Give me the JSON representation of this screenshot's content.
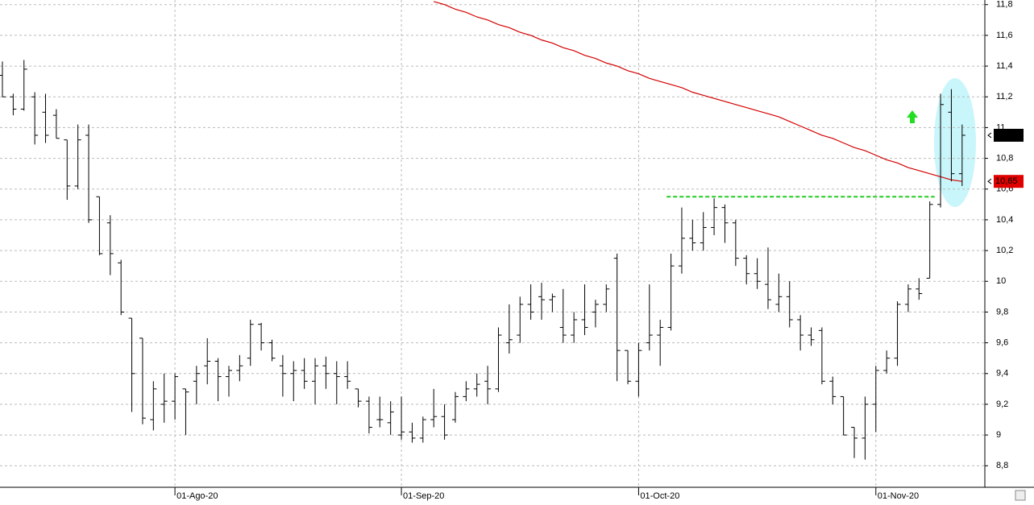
{
  "chart_data": {
    "type": "ohlc",
    "categories": [
      null,
      null,
      null,
      null,
      null,
      null,
      null,
      null,
      null,
      null,
      null,
      null,
      null,
      null,
      null,
      null,
      "01-Ago-20",
      null,
      null,
      null,
      null,
      null,
      null,
      null,
      null,
      null,
      null,
      null,
      null,
      null,
      null,
      null,
      null,
      null,
      null,
      null,
      null,
      "01-Sep-20",
      null,
      null,
      null,
      null,
      null,
      null,
      null,
      null,
      null,
      null,
      null,
      null,
      null,
      null,
      null,
      null,
      null,
      null,
      null,
      null,
      null,
      "01-Oct-20",
      null,
      null,
      null,
      null,
      null,
      null,
      null,
      null,
      null,
      null,
      null,
      null,
      null,
      null,
      null,
      null,
      null,
      null,
      null,
      null,
      null,
      "01-Nov-20",
      null,
      null,
      null,
      null,
      null,
      null,
      null,
      null
    ],
    "ohlc": {
      "color": "#000000",
      "open": [
        11.34,
        11.2,
        11.12,
        11.2,
        11.1,
        11.08,
        10.92,
        10.62,
        10.95,
        10.55,
        10.38,
        10.12,
        9.76,
        9.63,
        9.1,
        9.2,
        9.22,
        9.3,
        9.35,
        9.45,
        9.48,
        9.38,
        9.42,
        9.5,
        9.72,
        9.6,
        9.45,
        9.4,
        9.42,
        9.35,
        9.45,
        9.4,
        9.38,
        9.3,
        9.22,
        9.1,
        9.08,
        9.0,
        9.02,
        8.98,
        9.1,
        9.12,
        9.1,
        9.25,
        9.3,
        9.35,
        9.3,
        9.6,
        9.65,
        9.85,
        9.9,
        9.88,
        9.7,
        9.65,
        9.75,
        9.8,
        9.85,
        10.15,
        9.55,
        9.35,
        9.6,
        9.65,
        9.7,
        10.1,
        10.28,
        10.25,
        10.35,
        10.48,
        10.38,
        10.15,
        10.05,
        9.98,
        9.85,
        9.9,
        9.75,
        9.65,
        9.68,
        9.35,
        9.25,
        9.05,
        8.98,
        9.2,
        9.42,
        9.5,
        9.85,
        9.95,
        10.02,
        10.5,
        11.1,
        10.7
      ],
      "high": [
        11.43,
        11.22,
        11.44,
        11.23,
        11.22,
        11.12,
        10.92,
        11.02,
        11.02,
        10.55,
        10.43,
        10.14,
        9.76,
        9.63,
        9.35,
        9.4,
        9.4,
        9.3,
        9.45,
        9.63,
        9.5,
        9.45,
        9.52,
        9.75,
        9.73,
        9.62,
        9.52,
        9.48,
        9.5,
        9.5,
        9.51,
        9.48,
        9.48,
        9.3,
        9.25,
        9.25,
        9.22,
        9.25,
        9.08,
        9.12,
        9.3,
        9.2,
        9.28,
        9.35,
        9.4,
        9.45,
        9.7,
        9.85,
        9.9,
        9.98,
        9.99,
        9.92,
        9.95,
        9.8,
        9.98,
        9.88,
        9.98,
        10.18,
        9.55,
        9.6,
        9.98,
        9.75,
        10.18,
        10.48,
        10.4,
        10.45,
        10.54,
        10.5,
        10.4,
        10.17,
        10.15,
        10.22,
        10.05,
        10.0,
        9.78,
        9.7,
        9.7,
        9.38,
        9.25,
        9.05,
        9.25,
        9.45,
        9.55,
        9.87,
        9.98,
        10.02,
        10.52,
        11.22,
        11.25,
        11.02
      ],
      "low": [
        11.2,
        11.08,
        11.11,
        10.89,
        10.9,
        10.93,
        10.53,
        10.6,
        10.38,
        10.17,
        10.04,
        9.78,
        9.15,
        9.07,
        9.03,
        9.08,
        9.1,
        9.0,
        9.2,
        9.33,
        9.22,
        9.25,
        9.35,
        9.45,
        9.55,
        9.48,
        9.25,
        9.22,
        9.3,
        9.2,
        9.3,
        9.2,
        9.3,
        9.18,
        9.01,
        9.05,
        9.0,
        8.97,
        8.95,
        8.95,
        9.05,
        8.97,
        9.08,
        9.22,
        9.25,
        9.2,
        9.28,
        9.53,
        9.6,
        9.75,
        9.75,
        9.8,
        9.6,
        9.6,
        9.65,
        9.7,
        9.8,
        9.35,
        9.33,
        9.25,
        9.55,
        9.45,
        9.68,
        10.05,
        10.2,
        10.2,
        10.3,
        10.25,
        10.1,
        9.98,
        9.95,
        9.82,
        9.8,
        9.7,
        9.55,
        9.58,
        9.33,
        9.2,
        9.0,
        8.85,
        8.84,
        9.02,
        9.4,
        9.45,
        9.8,
        9.88,
        10.02,
        10.48,
        10.65,
        10.62
      ],
      "close": [
        11.2,
        11.12,
        11.38,
        10.95,
        10.95,
        10.93,
        10.62,
        10.92,
        10.4,
        10.18,
        10.18,
        9.8,
        9.4,
        9.11,
        9.3,
        9.22,
        9.38,
        9.28,
        9.4,
        9.48,
        9.38,
        9.42,
        9.45,
        9.72,
        9.6,
        9.5,
        9.4,
        9.42,
        9.35,
        9.45,
        9.4,
        9.38,
        9.35,
        9.22,
        9.05,
        9.1,
        9.15,
        9.02,
        8.98,
        9.1,
        9.12,
        9.0,
        9.25,
        9.3,
        9.33,
        9.3,
        9.65,
        9.62,
        9.85,
        9.8,
        9.88,
        9.9,
        9.65,
        9.75,
        9.7,
        9.85,
        9.95,
        9.55,
        9.35,
        9.55,
        9.65,
        9.7,
        10.1,
        10.28,
        10.25,
        10.35,
        10.48,
        10.38,
        10.15,
        10.05,
        10.0,
        9.88,
        9.9,
        9.75,
        9.65,
        9.62,
        9.35,
        9.25,
        9.0,
        8.98,
        9.2,
        9.42,
        9.5,
        9.85,
        9.95,
        9.92,
        10.5,
        11.15,
        10.7,
        10.95
      ]
    },
    "moving_average": {
      "color": "#d40000",
      "values": [
        null,
        null,
        null,
        null,
        null,
        null,
        null,
        null,
        null,
        null,
        null,
        null,
        null,
        null,
        null,
        null,
        null,
        null,
        null,
        null,
        null,
        null,
        null,
        null,
        null,
        null,
        null,
        null,
        null,
        null,
        null,
        null,
        null,
        null,
        null,
        null,
        null,
        null,
        null,
        null,
        11.82,
        11.8,
        11.77,
        11.75,
        11.72,
        11.7,
        11.67,
        11.65,
        11.62,
        11.6,
        11.57,
        11.55,
        11.52,
        11.5,
        11.47,
        11.45,
        11.42,
        11.4,
        11.37,
        11.35,
        11.32,
        11.3,
        11.28,
        11.26,
        11.23,
        11.21,
        11.19,
        11.17,
        11.15,
        11.13,
        11.11,
        11.09,
        11.07,
        11.04,
        11.01,
        10.98,
        10.95,
        10.93,
        10.9,
        10.87,
        10.85,
        10.82,
        10.79,
        10.77,
        10.74,
        10.72,
        10.7,
        10.68,
        10.66,
        10.65
      ]
    },
    "support_level": {
      "value": 10.55,
      "color": "#22cc22"
    },
    "price_tags": [
      {
        "value": 10.95,
        "color": "#000000"
      },
      {
        "value": 10.65,
        "label": "10,65",
        "color": "#e00000"
      }
    ],
    "ylim": [
      8.66,
      11.83
    ],
    "yticks": [
      {
        "value": 8.8,
        "label": "8,8"
      },
      9,
      {
        "value": 9.2,
        "label": "9,2"
      },
      {
        "value": 9.4,
        "label": "9,4"
      },
      {
        "value": 9.6,
        "label": "9,6"
      },
      {
        "value": 9.8,
        "label": "9,8"
      },
      10,
      {
        "value": 10.2,
        "label": "10,2"
      },
      {
        "value": 10.4,
        "label": "10,4"
      },
      {
        "value": 10.6,
        "label": "10,6"
      },
      {
        "value": 10.8,
        "label": "10,8"
      },
      11,
      {
        "value": 11.2,
        "label": "11,2"
      },
      {
        "value": 11.4,
        "label": "11,4"
      },
      {
        "value": 11.6,
        "label": "11,6"
      },
      {
        "value": 11.8,
        "label": "11,8"
      }
    ],
    "grid": true
  }
}
